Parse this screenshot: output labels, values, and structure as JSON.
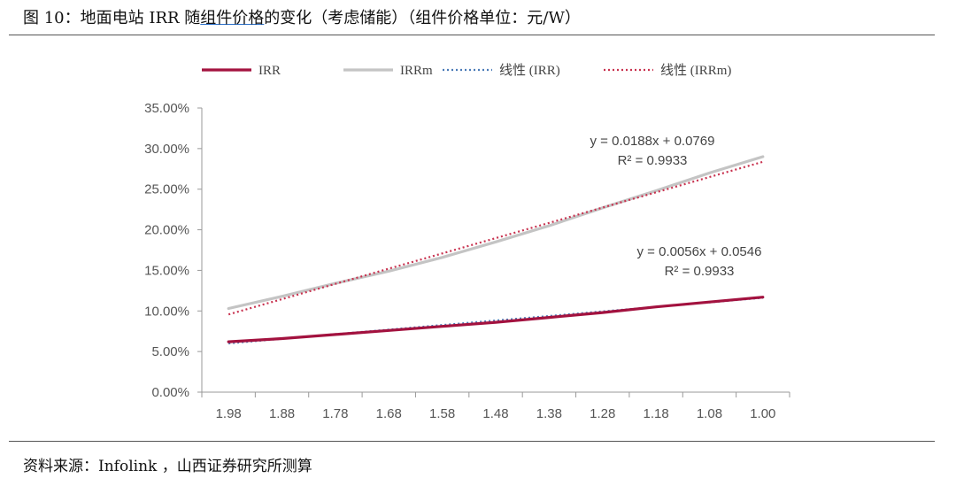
{
  "header": {
    "title_pre": "图 10：地面电站 IRR 随",
    "title_link": "组件价格",
    "title_post": "的变化（考虑储能）（组件价格单位：元/W）"
  },
  "footer": {
    "source": "资料来源：Infolink ，山西证券研究所测算"
  },
  "colors": {
    "irr": "#a3123f",
    "irrm": "#c4c4c4",
    "trend_irr": "#4a7bb7",
    "trend_irrm": "#c8324f"
  },
  "chart_data": {
    "type": "line",
    "categories": [
      "1.98",
      "1.88",
      "1.78",
      "1.68",
      "1.58",
      "1.48",
      "1.38",
      "1.28",
      "1.18",
      "1.08",
      "1.00"
    ],
    "ylim": [
      0,
      35
    ],
    "yticks": [
      "0.00%",
      "5.00%",
      "10.00%",
      "15.00%",
      "20.00%",
      "25.00%",
      "30.00%",
      "35.00%"
    ],
    "ytick_values": [
      0,
      5,
      10,
      15,
      20,
      25,
      30,
      35
    ],
    "legend_position": "top",
    "series": [
      {
        "name": "IRR",
        "style": "solid",
        "values": [
          6.2,
          6.6,
          7.1,
          7.6,
          8.1,
          8.6,
          9.2,
          9.8,
          10.5,
          11.1,
          11.7
        ]
      },
      {
        "name": "IRRm",
        "style": "solid",
        "values": [
          10.3,
          11.8,
          13.4,
          14.9,
          16.6,
          18.5,
          20.5,
          22.7,
          24.8,
          27.0,
          29.0
        ]
      },
      {
        "name": "线性 (IRR)",
        "style": "dotted",
        "values": [
          6.0,
          6.58,
          7.14,
          7.7,
          8.26,
          8.82,
          9.38,
          9.94,
          10.5,
          11.06,
          11.62
        ]
      },
      {
        "name": "线性 (IRRm)",
        "style": "dotted",
        "values": [
          9.57,
          11.45,
          13.33,
          15.21,
          17.09,
          18.97,
          20.85,
          22.73,
          24.61,
          26.49,
          28.37
        ]
      }
    ],
    "annotations": [
      {
        "equation": "y = 0.0188x  + 0.0769",
        "r2": "R² = 0.9933"
      },
      {
        "equation": "y = 0.0056x  + 0.0546",
        "r2": "R² = 0.9933"
      }
    ]
  }
}
